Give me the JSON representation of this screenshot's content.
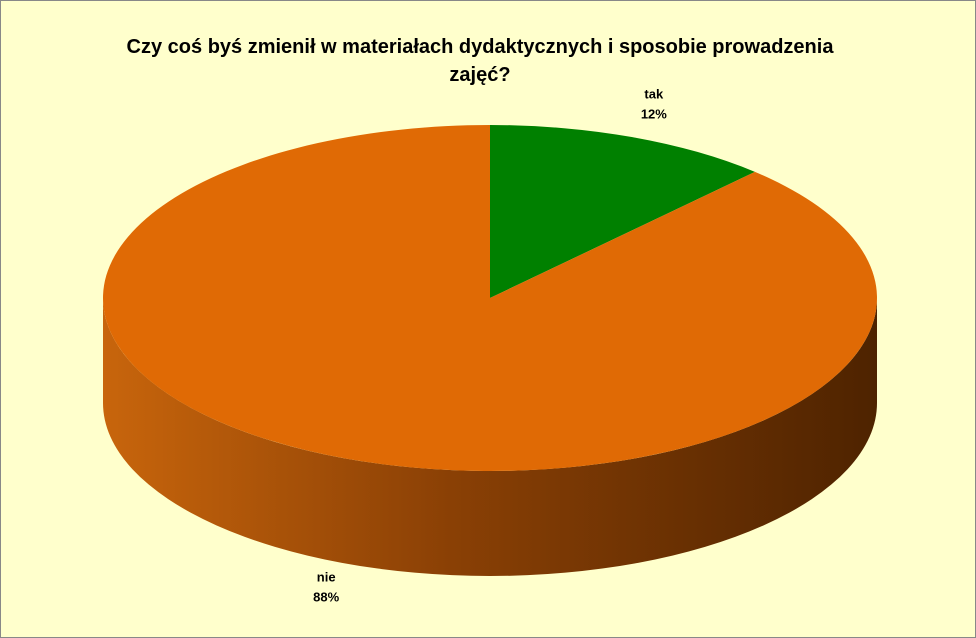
{
  "chart_data": {
    "type": "pie",
    "title": "Czy coś byś zmienił w materiałach dydaktycznych i sposobie prowadzenia zajęć?",
    "categories": [
      "tak",
      "nie"
    ],
    "values": [
      12,
      88
    ],
    "value_labels": [
      "12%",
      "88%"
    ],
    "colors": [
      "#008000",
      "#e06a05"
    ]
  }
}
